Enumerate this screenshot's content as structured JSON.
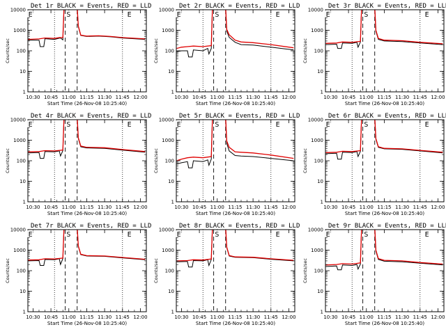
{
  "figure": {
    "y_label": "Counts/sec",
    "x_label": "Start Time (26-Nov-08 10:25:40)",
    "x_ticks": [
      "10:30",
      "10:45",
      "11:00",
      "11:15",
      "11:30",
      "11:45",
      "12:00"
    ],
    "y_ticks": [
      "1",
      "10",
      "100",
      "1000",
      "10000"
    ],
    "colors": {
      "events": "#000000",
      "lld": "#e00000",
      "background": "#ffffff"
    }
  },
  "chart_data": [
    {
      "type": "line",
      "title": "Det 1r BLACK = Events, RED = LLD",
      "ylim": [
        1,
        10000
      ],
      "yscale": "log",
      "xlim_minutes": [
        "10:25:40",
        "12:05:00"
      ],
      "markers": [
        {
          "label": "E",
          "x": "10:26"
        },
        {
          "label": "S",
          "x": "10:58"
        },
        {
          "label": "E",
          "x": "11:49"
        }
      ],
      "dashed_lines": [
        "10:57",
        "11:07"
      ],
      "dotted_lines": [
        "10:48",
        "11:45"
      ],
      "series": [
        {
          "name": "Events",
          "color": "#000000",
          "x": [
            "10:26",
            "10:35",
            "10:36",
            "10:39",
            "10:40",
            "10:48",
            "10:52",
            "10:53",
            "10:55",
            "10:56",
            "10:58",
            "11:01",
            "11:07",
            "11:08",
            "11:10",
            "11:15",
            "11:25",
            "11:35",
            "11:45",
            "12:04"
          ],
          "y": [
            330,
            330,
            160,
            160,
            390,
            360,
            410,
            420,
            340,
            14000,
            14000,
            14000,
            14000,
            1500,
            560,
            500,
            520,
            480,
            420,
            360
          ]
        },
        {
          "name": "LLD",
          "color": "#e00000",
          "x": [
            "10:26",
            "10:35",
            "10:40",
            "10:48",
            "10:52",
            "10:55",
            "10:56",
            "10:58",
            "11:01",
            "11:07",
            "11:08",
            "11:10",
            "11:15",
            "11:25",
            "11:35",
            "11:45",
            "12:04"
          ],
          "y": [
            360,
            380,
            420,
            400,
            440,
            440,
            14000,
            14000,
            14000,
            14000,
            1600,
            580,
            520,
            540,
            500,
            440,
            380
          ]
        }
      ]
    },
    {
      "type": "line",
      "title": "Det 2r BLACK = Events, RED = LLD",
      "ylim": [
        1,
        10000
      ],
      "yscale": "log",
      "xlim_minutes": [
        "10:25:40",
        "12:05:00"
      ],
      "markers": [
        {
          "label": "E",
          "x": "10:26"
        },
        {
          "label": "S",
          "x": "10:58"
        },
        {
          "label": "E",
          "x": "11:49"
        }
      ],
      "dashed_lines": [
        "10:57",
        "11:07"
      ],
      "dotted_lines": [
        "10:48",
        "11:45"
      ],
      "series": [
        {
          "name": "Events",
          "color": "#000000",
          "x": [
            "10:26",
            "10:30",
            "10:35",
            "10:36",
            "10:39",
            "10:40",
            "10:48",
            "10:52",
            "10:53",
            "10:55",
            "10:56",
            "10:58",
            "11:07",
            "11:08",
            "11:10",
            "11:15",
            "11:20",
            "11:30",
            "11:45",
            "12:04"
          ],
          "y": [
            90,
            100,
            100,
            50,
            50,
            110,
            100,
            130,
            70,
            130,
            14000,
            14000,
            14000,
            900,
            450,
            260,
            200,
            190,
            150,
            110
          ]
        },
        {
          "name": "LLD",
          "color": "#e00000",
          "x": [
            "10:26",
            "10:30",
            "10:35",
            "10:40",
            "10:48",
            "10:55",
            "10:56",
            "10:58",
            "11:07",
            "11:08",
            "11:10",
            "11:15",
            "11:20",
            "11:30",
            "11:45",
            "12:04"
          ],
          "y": [
            130,
            150,
            160,
            170,
            160,
            180,
            14000,
            14000,
            14000,
            1100,
            600,
            330,
            270,
            250,
            200,
            140
          ]
        }
      ]
    },
    {
      "type": "line",
      "title": "Det 3r BLACK = Events, RED = LLD",
      "ylim": [
        1,
        10000
      ],
      "yscale": "log",
      "xlim_minutes": [
        "10:25:40",
        "12:05:00"
      ],
      "markers": [
        {
          "label": "E",
          "x": "10:26"
        },
        {
          "label": "S",
          "x": "10:58"
        },
        {
          "label": "E",
          "x": "11:49"
        }
      ],
      "dashed_lines": [
        "10:57",
        "11:07"
      ],
      "dotted_lines": [
        "10:48",
        "11:45"
      ],
      "series": [
        {
          "name": "Events",
          "color": "#000000",
          "x": [
            "10:26",
            "10:35",
            "10:36",
            "10:39",
            "10:40",
            "10:48",
            "10:52",
            "10:53",
            "10:55",
            "10:56",
            "10:58",
            "11:07",
            "11:08",
            "11:10",
            "11:15",
            "11:30",
            "11:45",
            "12:04"
          ],
          "y": [
            200,
            210,
            130,
            130,
            240,
            230,
            260,
            150,
            270,
            14000,
            14000,
            14000,
            900,
            360,
            300,
            280,
            240,
            200
          ]
        },
        {
          "name": "LLD",
          "color": "#e00000",
          "x": [
            "10:26",
            "10:35",
            "10:40",
            "10:48",
            "10:55",
            "10:56",
            "10:58",
            "11:07",
            "11:08",
            "11:10",
            "11:15",
            "11:30",
            "11:45",
            "12:04"
          ],
          "y": [
            230,
            240,
            270,
            260,
            290,
            14000,
            14000,
            14000,
            1000,
            400,
            330,
            310,
            260,
            220
          ]
        }
      ]
    },
    {
      "type": "line",
      "title": "Det 4r BLACK = Events, RED = LLD",
      "ylim": [
        1,
        10000
      ],
      "yscale": "log",
      "xlim_minutes": [
        "10:25:40",
        "12:05:00"
      ],
      "markers": [
        {
          "label": "E",
          "x": "10:26"
        },
        {
          "label": "S",
          "x": "10:58"
        },
        {
          "label": "E",
          "x": "11:49"
        }
      ],
      "dashed_lines": [
        "10:57",
        "11:07"
      ],
      "dotted_lines": [
        "10:48",
        "11:45"
      ],
      "series": [
        {
          "name": "Events",
          "color": "#000000",
          "x": [
            "10:26",
            "10:35",
            "10:36",
            "10:39",
            "10:40",
            "10:48",
            "10:52",
            "10:53",
            "10:55",
            "10:56",
            "10:58",
            "11:07",
            "11:08",
            "11:10",
            "11:15",
            "11:30",
            "11:45",
            "12:04"
          ],
          "y": [
            240,
            250,
            130,
            130,
            280,
            270,
            300,
            170,
            310,
            14000,
            14000,
            14000,
            1200,
            480,
            420,
            400,
            330,
            260
          ]
        },
        {
          "name": "LLD",
          "color": "#e00000",
          "x": [
            "10:26",
            "10:35",
            "10:40",
            "10:48",
            "10:55",
            "10:56",
            "10:58",
            "11:07",
            "11:08",
            "11:10",
            "11:15",
            "11:30",
            "11:45",
            "12:04"
          ],
          "y": [
            270,
            280,
            310,
            300,
            330,
            14000,
            14000,
            14000,
            1300,
            520,
            450,
            430,
            350,
            280
          ]
        }
      ]
    },
    {
      "type": "line",
      "title": "Det 5r BLACK = Events, RED = LLD",
      "ylim": [
        1,
        10000
      ],
      "yscale": "log",
      "xlim_minutes": [
        "10:25:40",
        "12:05:00"
      ],
      "markers": [
        {
          "label": "E",
          "x": "10:26"
        },
        {
          "label": "S",
          "x": "10:58"
        },
        {
          "label": "E",
          "x": "11:49"
        }
      ],
      "dashed_lines": [
        "10:57",
        "11:07"
      ],
      "dotted_lines": [
        "10:48",
        "11:45"
      ],
      "series": [
        {
          "name": "Events",
          "color": "#000000",
          "x": [
            "10:26",
            "10:30",
            "10:35",
            "10:36",
            "10:39",
            "10:40",
            "10:48",
            "10:52",
            "10:53",
            "10:55",
            "10:56",
            "10:58",
            "11:07",
            "11:08",
            "11:10",
            "11:15",
            "11:20",
            "11:30",
            "11:45",
            "12:04"
          ],
          "y": [
            70,
            80,
            90,
            45,
            45,
            100,
            90,
            110,
            60,
            120,
            14000,
            14000,
            14000,
            700,
            300,
            180,
            170,
            160,
            130,
            100
          ]
        },
        {
          "name": "LLD",
          "color": "#e00000",
          "x": [
            "10:26",
            "10:30",
            "10:35",
            "10:40",
            "10:48",
            "10:55",
            "10:56",
            "10:58",
            "11:07",
            "11:08",
            "11:10",
            "11:15",
            "11:20",
            "11:30",
            "11:45",
            "12:04"
          ],
          "y": [
            100,
            120,
            140,
            150,
            140,
            160,
            14000,
            14000,
            14000,
            900,
            450,
            270,
            260,
            240,
            190,
            130
          ]
        }
      ]
    },
    {
      "type": "line",
      "title": "Det 6r BLACK = Events, RED = LLD",
      "ylim": [
        1,
        10000
      ],
      "yscale": "log",
      "xlim_minutes": [
        "10:25:40",
        "12:05:00"
      ],
      "markers": [
        {
          "label": "E",
          "x": "10:26"
        },
        {
          "label": "S",
          "x": "10:58"
        },
        {
          "label": "E",
          "x": "11:49"
        }
      ],
      "dashed_lines": [
        "10:57",
        "11:07"
      ],
      "dotted_lines": [
        "10:48",
        "11:45"
      ],
      "series": [
        {
          "name": "Events",
          "color": "#000000",
          "x": [
            "10:26",
            "10:35",
            "10:36",
            "10:39",
            "10:40",
            "10:48",
            "10:52",
            "10:53",
            "10:55",
            "10:56",
            "10:58",
            "11:07",
            "11:08",
            "11:10",
            "11:15",
            "11:30",
            "11:45",
            "12:04"
          ],
          "y": [
            220,
            230,
            120,
            120,
            260,
            250,
            280,
            160,
            290,
            14000,
            14000,
            14000,
            1100,
            450,
            380,
            360,
            300,
            240
          ]
        },
        {
          "name": "LLD",
          "color": "#e00000",
          "x": [
            "10:26",
            "10:35",
            "10:40",
            "10:48",
            "10:55",
            "10:56",
            "10:58",
            "11:07",
            "11:08",
            "11:10",
            "11:15",
            "11:30",
            "11:45",
            "12:04"
          ],
          "y": [
            250,
            260,
            290,
            280,
            310,
            14000,
            14000,
            14000,
            1200,
            480,
            400,
            380,
            320,
            260
          ]
        }
      ]
    },
    {
      "type": "line",
      "title": "Det 7r BLACK = Events, RED = LLD",
      "ylim": [
        1,
        10000
      ],
      "yscale": "log",
      "xlim_minutes": [
        "10:25:40",
        "12:05:00"
      ],
      "markers": [
        {
          "label": "E",
          "x": "10:26"
        },
        {
          "label": "S",
          "x": "10:58"
        },
        {
          "label": "E",
          "x": "11:49"
        }
      ],
      "dashed_lines": [
        "10:57",
        "11:07"
      ],
      "dotted_lines": [
        "10:48",
        "11:45"
      ],
      "series": [
        {
          "name": "Events",
          "color": "#000000",
          "x": [
            "10:26",
            "10:35",
            "10:36",
            "10:39",
            "10:40",
            "10:48",
            "10:52",
            "10:53",
            "10:55",
            "10:56",
            "10:58",
            "11:07",
            "11:08",
            "11:10",
            "11:15",
            "11:30",
            "11:45",
            "12:04"
          ],
          "y": [
            300,
            310,
            180,
            180,
            350,
            340,
            380,
            200,
            390,
            14000,
            14000,
            14000,
            1500,
            600,
            520,
            500,
            420,
            340
          ]
        },
        {
          "name": "LLD",
          "color": "#e00000",
          "x": [
            "10:26",
            "10:35",
            "10:40",
            "10:48",
            "10:55",
            "10:56",
            "10:58",
            "11:07",
            "11:08",
            "11:10",
            "11:15",
            "11:30",
            "11:45",
            "12:04"
          ],
          "y": [
            330,
            340,
            380,
            370,
            410,
            14000,
            14000,
            14000,
            1600,
            630,
            540,
            520,
            440,
            360
          ]
        }
      ]
    },
    {
      "type": "line",
      "title": "Det 8r BLACK = Events, RED = LLD",
      "ylim": [
        1,
        10000
      ],
      "yscale": "log",
      "xlim_minutes": [
        "10:25:40",
        "12:05:00"
      ],
      "markers": [
        {
          "label": "E",
          "x": "10:26"
        },
        {
          "label": "S",
          "x": "10:58"
        },
        {
          "label": "E",
          "x": "11:49"
        }
      ],
      "dashed_lines": [
        "10:57",
        "11:07"
      ],
      "dotted_lines": [
        "10:48",
        "11:45"
      ],
      "series": [
        {
          "name": "Events",
          "color": "#000000",
          "x": [
            "10:26",
            "10:35",
            "10:36",
            "10:39",
            "10:40",
            "10:48",
            "10:52",
            "10:53",
            "10:55",
            "10:56",
            "10:58",
            "11:07",
            "11:08",
            "11:10",
            "11:15",
            "11:30",
            "11:45",
            "12:04"
          ],
          "y": [
            270,
            280,
            150,
            150,
            310,
            300,
            340,
            180,
            350,
            14000,
            14000,
            14000,
            1300,
            520,
            450,
            430,
            360,
            300
          ]
        },
        {
          "name": "LLD",
          "color": "#e00000",
          "x": [
            "10:26",
            "10:35",
            "10:40",
            "10:48",
            "10:55",
            "10:56",
            "10:58",
            "11:07",
            "11:08",
            "11:10",
            "11:15",
            "11:30",
            "11:45",
            "12:04"
          ],
          "y": [
            300,
            310,
            340,
            330,
            370,
            14000,
            14000,
            14000,
            1400,
            550,
            470,
            450,
            380,
            320
          ]
        }
      ]
    },
    {
      "type": "line",
      "title": "Det 9r BLACK = Events, RED = LLD",
      "ylim": [
        1,
        10000
      ],
      "yscale": "log",
      "xlim_minutes": [
        "10:25:40",
        "12:05:00"
      ],
      "markers": [
        {
          "label": "E",
          "x": "10:26"
        },
        {
          "label": "S",
          "x": "10:58"
        },
        {
          "label": "E",
          "x": "11:49"
        }
      ],
      "dashed_lines": [
        "10:57",
        "11:07"
      ],
      "dotted_lines": [
        "10:48",
        "11:45"
      ],
      "series": [
        {
          "name": "Events",
          "color": "#000000",
          "x": [
            "10:26",
            "10:35",
            "10:36",
            "10:39",
            "10:40",
            "10:48",
            "10:52",
            "10:53",
            "10:55",
            "10:56",
            "10:58",
            "11:07",
            "11:08",
            "11:10",
            "11:15",
            "11:30",
            "11:45",
            "12:04"
          ],
          "y": [
            160,
            170,
            110,
            110,
            190,
            180,
            200,
            120,
            210,
            14000,
            14000,
            14000,
            900,
            350,
            290,
            270,
            230,
            190
          ]
        },
        {
          "name": "LLD",
          "color": "#e00000",
          "x": [
            "10:26",
            "10:35",
            "10:40",
            "10:48",
            "10:55",
            "10:56",
            "10:58",
            "11:07",
            "11:08",
            "11:10",
            "11:15",
            "11:30",
            "11:45",
            "12:04"
          ],
          "y": [
            190,
            200,
            220,
            210,
            240,
            14000,
            14000,
            14000,
            1000,
            390,
            320,
            300,
            250,
            210
          ]
        }
      ]
    }
  ]
}
